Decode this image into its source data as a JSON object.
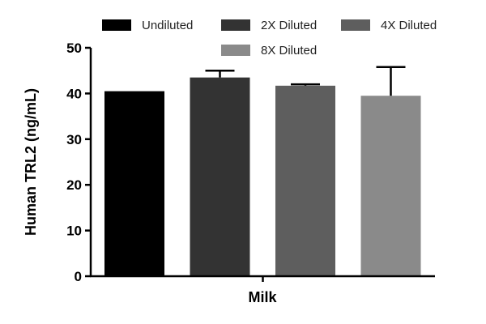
{
  "chart_data": {
    "type": "bar",
    "categories": [
      "Milk"
    ],
    "series": [
      {
        "name": "Undiluted",
        "values": [
          40.5
        ],
        "error": [
          0
        ],
        "color": "#000000"
      },
      {
        "name": "2X Diluted",
        "values": [
          43.5
        ],
        "error": [
          1.5
        ],
        "color": "#333333"
      },
      {
        "name": "4X Diluted",
        "values": [
          41.7
        ],
        "error": [
          0.3
        ],
        "color": "#5e5e5e"
      },
      {
        "name": "8X Diluted",
        "values": [
          39.5
        ],
        "error": [
          6.3
        ],
        "color": "#8a8a8a"
      }
    ],
    "xlabel": "Milk",
    "ylabel": "Human TRL2 (ng/mL)",
    "ylim": [
      0,
      50
    ],
    "yticks": [
      "0",
      "10",
      "20",
      "30",
      "40",
      "50"
    ],
    "grid": false,
    "legend_position": "top"
  }
}
